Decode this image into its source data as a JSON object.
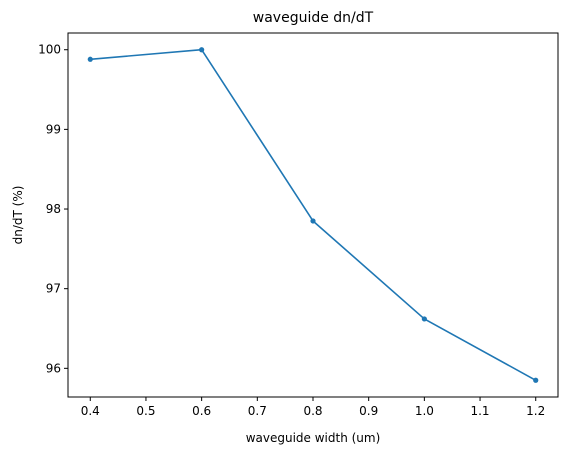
{
  "chart_data": {
    "type": "line",
    "title": "waveguide dn/dT",
    "xlabel": "waveguide width (um)",
    "ylabel": "dn/dT (%)",
    "x": [
      0.4,
      0.6,
      0.8,
      1.0,
      1.2
    ],
    "series": [
      {
        "values": [
          99.88,
          100.0,
          97.85,
          96.62,
          95.85
        ],
        "color": "#1f77b4"
      }
    ],
    "xlim": [
      0.36,
      1.24
    ],
    "ylim": [
      95.64,
      100.21
    ],
    "xticks": [
      "0.4",
      "0.5",
      "0.6",
      "0.7",
      "0.8",
      "0.9",
      "1.0",
      "1.1",
      "1.2"
    ],
    "yticks": [
      "96",
      "97",
      "98",
      "99",
      "100"
    ],
    "grid": false,
    "marker": "dot"
  }
}
